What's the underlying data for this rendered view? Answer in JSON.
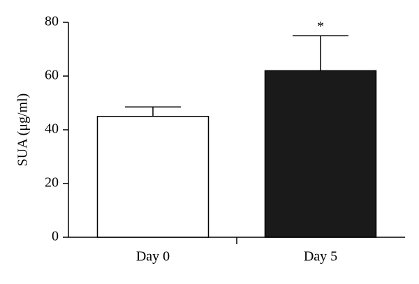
{
  "chart_data": {
    "type": "bar",
    "y_label": "SUA (μg/ml)",
    "categories": [
      "Day 0",
      "Day 5"
    ],
    "values": [
      45,
      62
    ],
    "errors": [
      3.5,
      13
    ],
    "colors": [
      "#ffffff",
      "#1a1a1a"
    ],
    "annotations": [
      "",
      "*"
    ],
    "ylim": [
      0,
      80
    ],
    "yticks": [
      0,
      20,
      40,
      60,
      80
    ]
  }
}
